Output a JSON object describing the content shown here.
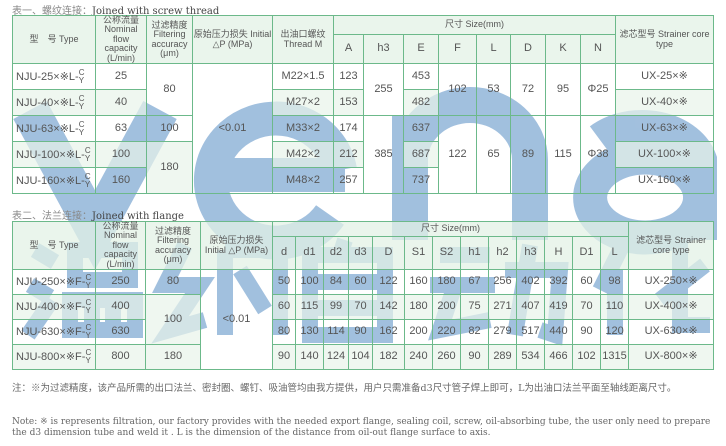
{
  "table1": {
    "title_zh": "表一、螺纹连接：",
    "title_en": "Joined with screw thread",
    "headers": {
      "type": "型　号 Type",
      "flow": "公称流量 Nominal flow capacity (L/min)",
      "filter": "过滤精度 Filtering accuracy (μm)",
      "initial": "原始压力损失 Initial △P (MPa)",
      "thread": "出油口螺纹 Thread M",
      "size": "尺寸 Size(mm)",
      "strainer": "滤芯型号 Strainer core type",
      "dims": [
        "A",
        "h3",
        "E",
        "F",
        "L",
        "D",
        "K",
        "N"
      ]
    },
    "rows": [
      {
        "type": "NJU-25×※L-",
        "c": "C",
        "y": "Y",
        "flow": "25",
        "thread": "M22×1.5",
        "A": "123",
        "E": "453",
        "strainer": "UX-25×※"
      },
      {
        "type": "NJU-40×※L-",
        "c": "C",
        "y": "Y",
        "flow": "40",
        "thread": "M27×2",
        "A": "153",
        "E": "482",
        "strainer": "UX-40×※"
      },
      {
        "type": "NJU-63×※L-",
        "c": "C",
        "y": "Y",
        "flow": "63",
        "thread": "M33×2",
        "A": "174",
        "E": "637",
        "strainer": "UX-63×※"
      },
      {
        "type": "NJU-100×※L-",
        "c": "C",
        "y": "Y",
        "flow": "100",
        "thread": "M42×2",
        "A": "212",
        "E": "687",
        "strainer": "UX-100×※"
      },
      {
        "type": "NJU-160×※L-",
        "c": "C",
        "y": "Y",
        "flow": "160",
        "thread": "M48×2",
        "A": "257",
        "E": "737",
        "strainer": "UX-160×※"
      }
    ],
    "filter": [
      "80",
      "100",
      "180"
    ],
    "initial": "<0.01",
    "groups": [
      {
        "h3": "255",
        "F": "102",
        "L": "53",
        "D": "72",
        "K": "95",
        "N": "Φ25"
      },
      {
        "h3": "385",
        "F": "122",
        "L": "65",
        "D": "89",
        "K": "115",
        "N": "Φ38"
      }
    ]
  },
  "table2": {
    "title_zh": "表二、法兰连接：",
    "title_en": "Joined with flange",
    "headers": {
      "type": "型　号 Type",
      "flow": "公称流量 Nominal flow capacity (L/min)",
      "filter": "过滤精度 Filtering accuracy (μm)",
      "initial": "原始压力损失 Initial △P (MPa)",
      "size": "尺寸 Size(mm)",
      "strainer": "滤芯型号 Strainer core type",
      "dims": [
        "d",
        "d1",
        "d2",
        "d3",
        "D",
        "S1",
        "S2",
        "h1",
        "h2",
        "h3",
        "H",
        "D1",
        "L"
      ]
    },
    "rows": [
      {
        "type": "NJU-250×※F-",
        "c": "C",
        "y": "Y",
        "flow": "250",
        "dims": [
          "50",
          "100",
          "84",
          "60",
          "122",
          "160",
          "180",
          "67",
          "256",
          "402",
          "392",
          "60",
          "98"
        ],
        "strainer": "UX-250×※"
      },
      {
        "type": "NJU-400×※F-",
        "c": "C",
        "y": "Y",
        "flow": "400",
        "dims": [
          "60",
          "115",
          "99",
          "70",
          "142",
          "180",
          "200",
          "75",
          "271",
          "407",
          "419",
          "70",
          "110"
        ],
        "strainer": "UX-400×※"
      },
      {
        "type": "NJU-630×※F-",
        "c": "C",
        "y": "Y",
        "flow": "630",
        "dims": [
          "80",
          "130",
          "114",
          "90",
          "162",
          "200",
          "220",
          "82",
          "279",
          "517",
          "440",
          "90",
          "120"
        ],
        "strainer": "UX-630×※"
      },
      {
        "type": "NJU-800×※F-",
        "c": "C",
        "y": "Y",
        "flow": "800",
        "dims": [
          "90",
          "140",
          "124",
          "104",
          "182",
          "240",
          "260",
          "90",
          "289",
          "534",
          "466",
          "102",
          "1315"
        ],
        "strainer": "UX-800×※"
      }
    ],
    "filter": [
      "80",
      "100",
      "180"
    ],
    "initial": "<0.01"
  },
  "notes": {
    "zh": "注：※为过滤精度，该产品所需的出口法兰、密封圈、螺钉、吸油管均由我方提供，用户只需准备d3尺寸管子焊上即可，L为出油口法兰平面至轴线距离尺寸。",
    "en": "Note: ※ is represents filtration, our factory provides with the needed export flange, sealing coil, screw, oil-absorbing tube, the user only need to prepare the d3 dimension tube and weld it . L is the dimension of the distance from oil-out flange surface to axis."
  },
  "watermark": {
    "latin": "vena",
    "zh": [
      "温",
      "纳",
      "自",
      "动",
      "化"
    ],
    "color": "#4682be"
  }
}
